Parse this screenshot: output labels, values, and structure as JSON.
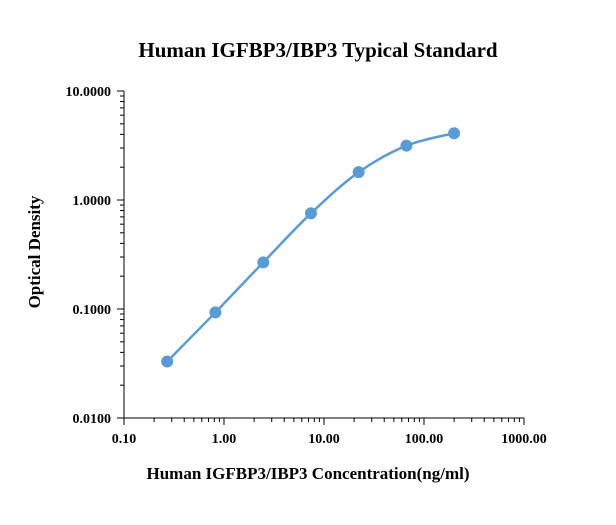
{
  "chart_data": {
    "type": "scatter",
    "title": "Human IGFBP3/IBP3 Typical Standard",
    "xlabel": "Human IGFBP3/IBP3 Concentration(ng/ml)",
    "ylabel": "Optical Density",
    "x_scale": "log",
    "y_scale": "log",
    "xlim": [
      0.1,
      1000
    ],
    "ylim": [
      0.01,
      10
    ],
    "x_ticks": [
      {
        "value": 0.1,
        "label": "0.10"
      },
      {
        "value": 1,
        "label": "1.00"
      },
      {
        "value": 10,
        "label": "10.00"
      },
      {
        "value": 100,
        "label": "100.00"
      },
      {
        "value": 1000,
        "label": "1000.00"
      }
    ],
    "y_ticks": [
      {
        "value": 0.01,
        "label": "0.0100"
      },
      {
        "value": 0.1,
        "label": "0.1000"
      },
      {
        "value": 1,
        "label": "1.0000"
      },
      {
        "value": 10,
        "label": "10.0000"
      }
    ],
    "grid": false,
    "legend": "none",
    "series": [
      {
        "x": [
          0.27,
          0.82,
          2.47,
          7.41,
          22.2,
          66.7,
          200
        ],
        "y": [
          0.033,
          0.093,
          0.268,
          0.755,
          1.8,
          3.15,
          4.1
        ],
        "color": "#5B9BD5",
        "smooth_line": true
      }
    ]
  }
}
